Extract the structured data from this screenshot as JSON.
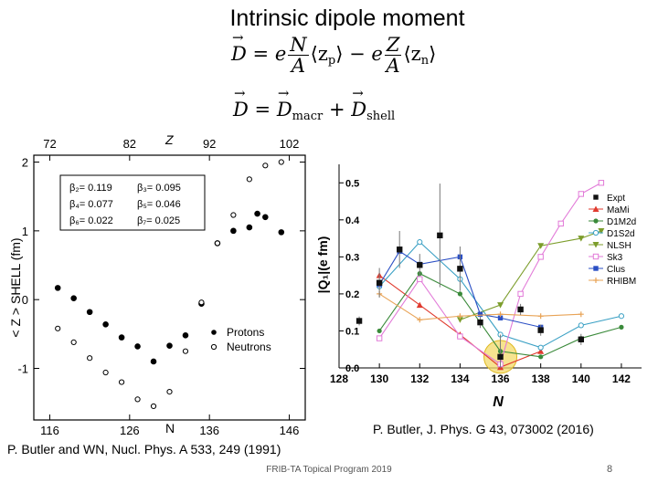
{
  "slide": {
    "title": "Intrinsic dipole moment",
    "eq1": {
      "lhs": "D",
      "e1": "e",
      "num1": "N",
      "den1": "A",
      "z1": "⟨z",
      "sub1": "p",
      "close1": "⟩",
      "minus": "−",
      "e2": "e",
      "num2": "Z",
      "den2": "A",
      "z2": "⟨z",
      "sub2": "n",
      "close2": "⟩"
    },
    "eq2": {
      "lhs": "D",
      "eq": "=",
      "d1": "D",
      "sub1": "macr",
      "plus": "+",
      "d2": "D",
      "sub2": "shell"
    },
    "cite_right": "P. Butler, J. Phys. G 43, 073002 (2016)",
    "cite_left": "P. Butler and WN, Nucl. Phys. A 533, 249 (1991)",
    "footer": "FRIB-TA Topical Program 2019",
    "page": "8"
  },
  "chart_data": [
    {
      "type": "scatter",
      "xlabel": "N",
      "x2label": "Z",
      "ylabel": "< Z > SHELL (fm)",
      "xlim": [
        114,
        148
      ],
      "ylim": [
        -1.75,
        2.1
      ],
      "xticks": [
        "116",
        "126",
        "136",
        "146"
      ],
      "x2ticks": [
        "72",
        "82",
        "92",
        "102"
      ],
      "yticks": [
        "2",
        "1",
        "0",
        "-1"
      ],
      "params": [
        [
          "β₂= 0.119",
          "β₃= 0.095"
        ],
        [
          "β₄= 0.077",
          "β₅= 0.046"
        ],
        [
          "β₆= 0.022",
          "β₇= 0.025"
        ]
      ],
      "series": [
        {
          "name": "Protons",
          "marker": "filled",
          "x": [
            117,
            119,
            121,
            123,
            125,
            127,
            129,
            131,
            133,
            135,
            137,
            139,
            141,
            142,
            143,
            145
          ],
          "y": [
            0.17,
            0.02,
            -0.18,
            -0.36,
            -0.55,
            -0.68,
            -0.9,
            -0.67,
            -0.52,
            -0.06,
            0.82,
            1.0,
            1.05,
            1.25,
            1.2,
            0.98
          ]
        },
        {
          "name": "Neutrons",
          "marker": "open",
          "x": [
            117,
            119,
            121,
            123,
            125,
            127,
            129,
            131,
            133,
            135,
            137,
            139,
            141,
            143,
            145
          ],
          "y": [
            -0.42,
            -0.62,
            -0.85,
            -1.06,
            -1.2,
            -1.45,
            -1.55,
            -1.34,
            -0.75,
            -0.04,
            0.82,
            1.23,
            1.75,
            1.95,
            2.0
          ]
        }
      ]
    },
    {
      "type": "line",
      "xlabel": "N",
      "ylabel": "|Q₁|(e fm)",
      "xlim": [
        128,
        143
      ],
      "ylim": [
        0,
        0.55
      ],
      "xticks": [
        "128",
        "130",
        "132",
        "134",
        "136",
        "138",
        "140",
        "142"
      ],
      "yticks": [
        "0.0",
        "0.1",
        "0.2",
        "0.3",
        "0.4",
        "0.5"
      ],
      "expt": {
        "name": "Expt",
        "points": [
          [
            129,
            0.127,
            0.012
          ],
          [
            130,
            0.23,
            0.04
          ],
          [
            131,
            0.32,
            0.05
          ],
          [
            132,
            0.278,
            0.03
          ],
          [
            133,
            0.358,
            0.14
          ],
          [
            134,
            0.268,
            0.06
          ],
          [
            135,
            0.123,
            0.015
          ],
          [
            136,
            0.03,
            0.06
          ],
          [
            137,
            0.158,
            0.015
          ],
          [
            138,
            0.102,
            0.015
          ],
          [
            140,
            0.077,
            0.015
          ]
        ]
      },
      "series": [
        {
          "name": "MaMi",
          "color": "#e03a2e",
          "marker": "tri-up-filled",
          "x": [
            130,
            132,
            134,
            136,
            138
          ],
          "y": [
            0.25,
            0.17,
            0.09,
            0.002,
            0.045
          ]
        },
        {
          "name": "D1M2d",
          "color": "#3a8a3a",
          "marker": "circle-filled",
          "x": [
            130,
            132,
            134,
            136,
            138,
            140,
            142
          ],
          "y": [
            0.1,
            0.255,
            0.2,
            0.045,
            0.03,
            0.08,
            0.11
          ]
        },
        {
          "name": "D1S2d",
          "color": "#3aa0c4",
          "marker": "circle-open",
          "x": [
            130,
            132,
            134,
            136,
            138,
            140,
            142
          ],
          "y": [
            0.22,
            0.34,
            0.24,
            0.09,
            0.055,
            0.115,
            0.14
          ]
        },
        {
          "name": "NLSH",
          "color": "#7c9d2b",
          "marker": "tri-down-filled",
          "x": [
            134,
            136,
            138,
            140,
            141
          ],
          "y": [
            0.13,
            0.17,
            0.33,
            0.35,
            0.37
          ]
        },
        {
          "name": "Sk3",
          "color": "#e27ad8",
          "marker": "square-open",
          "x": [
            130,
            132,
            134,
            136,
            137,
            138,
            139,
            140,
            141
          ],
          "y": [
            0.08,
            0.24,
            0.085,
            0.01,
            0.2,
            0.3,
            0.39,
            0.47,
            0.5
          ]
        },
        {
          "name": "Clus",
          "color": "#2b4fc4",
          "marker": "square-filled",
          "x": [
            130,
            131,
            132,
            134,
            135,
            136,
            138
          ],
          "y": [
            0.225,
            0.315,
            0.28,
            0.3,
            0.145,
            0.135,
            0.11
          ]
        },
        {
          "name": "RHIBM",
          "color": "#e8a356",
          "marker": "plus",
          "x": [
            130,
            132,
            134,
            136,
            138,
            140
          ],
          "y": [
            0.2,
            0.13,
            0.14,
            0.145,
            0.14,
            0.145
          ]
        }
      ],
      "highlight": {
        "x": 136,
        "y": 0.03,
        "color": "#f3da6a"
      }
    }
  ]
}
